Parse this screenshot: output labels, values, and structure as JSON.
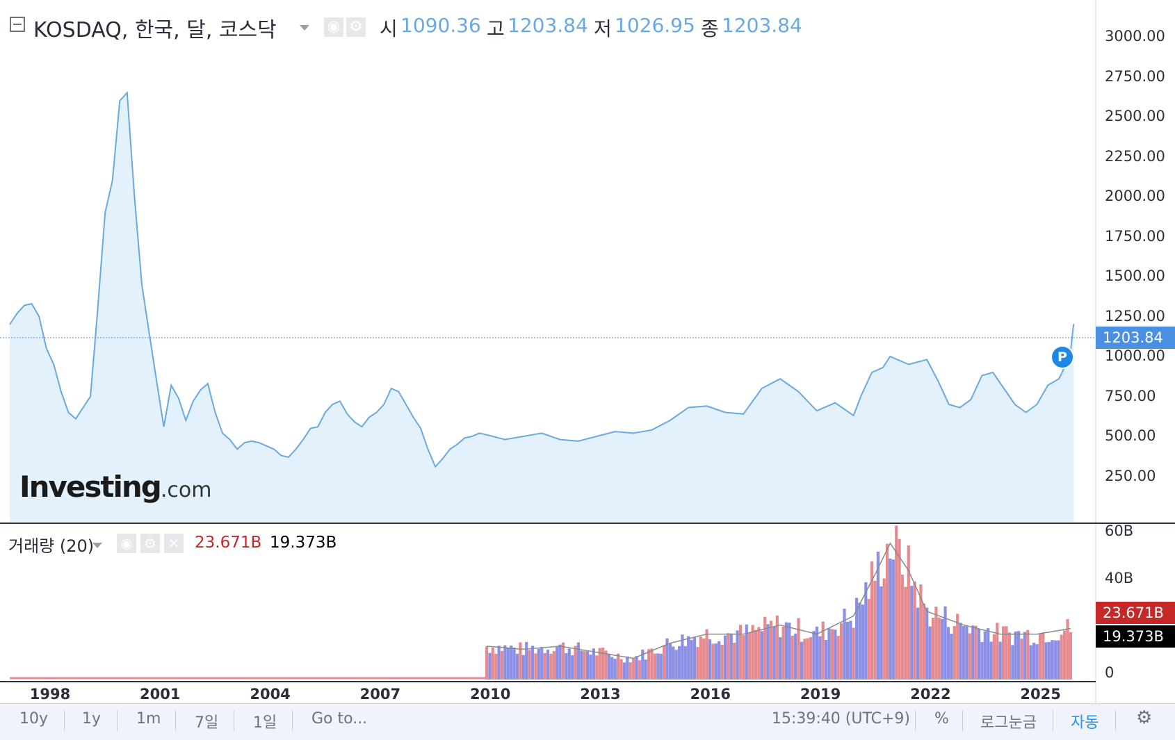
{
  "header": {
    "symbol": "KOSDAQ, 한국, 달, 코스닥",
    "ohlc": [
      {
        "label": "시",
        "value": "1090.36"
      },
      {
        "label": "고",
        "value": "1203.84"
      },
      {
        "label": "저",
        "value": "1026.95"
      },
      {
        "label": "종",
        "value": "1203.84"
      }
    ]
  },
  "price_axis": {
    "ticks": [
      "3000.00",
      "2750.00",
      "2500.00",
      "2250.00",
      "2000.00",
      "1750.00",
      "1500.00",
      "1250.00",
      "1000.00",
      "750.00",
      "500.00",
      "250.00"
    ],
    "last_price_badge": "1203.84"
  },
  "logo": {
    "main": "Investing",
    "suffix": ".com"
  },
  "p_marker": "P",
  "volume": {
    "title": "거래량 (20)",
    "value": "23.671B",
    "ma_value": "19.373B",
    "axis_ticks": [
      "60B",
      "40B",
      "0"
    ],
    "badge_value": "23.671B",
    "badge_ma": "19.373B"
  },
  "time_axis": {
    "ticks": [
      "1998",
      "2001",
      "2004",
      "2007",
      "2010",
      "2013",
      "2016",
      "2019",
      "2022",
      "2025"
    ]
  },
  "toolbar": {
    "ranges": [
      "10y",
      "1y",
      "1m",
      "7일",
      "1일"
    ],
    "goto": "Go to...",
    "clock": "15:39:40 (UTC+9)",
    "percent": "%",
    "log": "로그눈금",
    "auto": "자동",
    "settings_icon": "gear-icon"
  },
  "colors": {
    "line": "#6aa8e0",
    "area": "#e3f1fc",
    "vol_up": "#e58b8f",
    "vol_down": "#8b8fe5",
    "badge_price": "#4a90e2",
    "badge_volume": "#c62828",
    "badge_ma": "#000000",
    "auto_active": "#2196f3"
  },
  "chart_data": {
    "type": "area",
    "title": "KOSDAQ, 한국, 달, 코스닥",
    "x_ticks": [
      "1998",
      "2001",
      "2004",
      "2007",
      "2010",
      "2013",
      "2016",
      "2019",
      "2022",
      "2025"
    ],
    "ylim": [
      0,
      3100
    ],
    "x": [
      1997.0,
      1997.2,
      1997.4,
      1997.6,
      1997.8,
      1998.0,
      1998.2,
      1998.4,
      1998.6,
      1998.8,
      1999.0,
      1999.2,
      1999.4,
      1999.6,
      1999.8,
      2000.0,
      2000.2,
      2000.4,
      2000.6,
      2000.8,
      2001.0,
      2001.2,
      2001.4,
      2001.6,
      2001.8,
      2002.0,
      2002.2,
      2002.4,
      2002.6,
      2002.8,
      2003.0,
      2003.2,
      2003.4,
      2003.6,
      2003.8,
      2004.0,
      2004.2,
      2004.4,
      2004.6,
      2004.8,
      2005.0,
      2005.2,
      2005.4,
      2005.6,
      2005.8,
      2006.0,
      2006.2,
      2006.4,
      2006.6,
      2006.8,
      2007.0,
      2007.2,
      2007.4,
      2007.6,
      2007.8,
      2008.0,
      2008.2,
      2008.4,
      2008.6,
      2008.8,
      2009.0,
      2009.2,
      2009.4,
      2009.6,
      2009.8,
      2010.0,
      2010.5,
      2011.0,
      2011.5,
      2012.0,
      2012.5,
      2013.0,
      2013.5,
      2014.0,
      2014.5,
      2015.0,
      2015.5,
      2016.0,
      2016.5,
      2017.0,
      2017.5,
      2018.0,
      2018.5,
      2019.0,
      2019.5,
      2020.0,
      2020.2,
      2020.5,
      2020.8,
      2021.0,
      2021.5,
      2022.0,
      2022.3,
      2022.6,
      2022.9,
      2023.2,
      2023.5,
      2023.8,
      2024.1,
      2024.4,
      2024.7,
      2025.0,
      2025.3,
      2025.6,
      2025.9,
      2026.0
    ],
    "series": [
      {
        "type": "line",
        "values": [
          1200,
          1270,
          1320,
          1330,
          1250,
          1050,
          950,
          780,
          650,
          610,
          680,
          750,
          1300,
          1900,
          2100,
          2600,
          2650,
          2000,
          1450,
          1150,
          850,
          560,
          820,
          740,
          600,
          720,
          790,
          830,
          650,
          520,
          480,
          420,
          460,
          470,
          460,
          440,
          420,
          380,
          370,
          420,
          480,
          550,
          560,
          650,
          700,
          720,
          640,
          590,
          560,
          620,
          650,
          700,
          800,
          780,
          700,
          620,
          550,
          420,
          310,
          360,
          420,
          450,
          490,
          500,
          520,
          510,
          480,
          500,
          520,
          480,
          470,
          500,
          530,
          520,
          540,
          600,
          680,
          690,
          650,
          640,
          800,
          860,
          780,
          660,
          710,
          630,
          750,
          900,
          930,
          1000,
          950,
          980,
          850,
          700,
          680,
          730,
          880,
          900,
          800,
          700,
          650,
          700,
          820,
          860,
          1000,
          1203.84
        ]
      }
    ]
  }
}
